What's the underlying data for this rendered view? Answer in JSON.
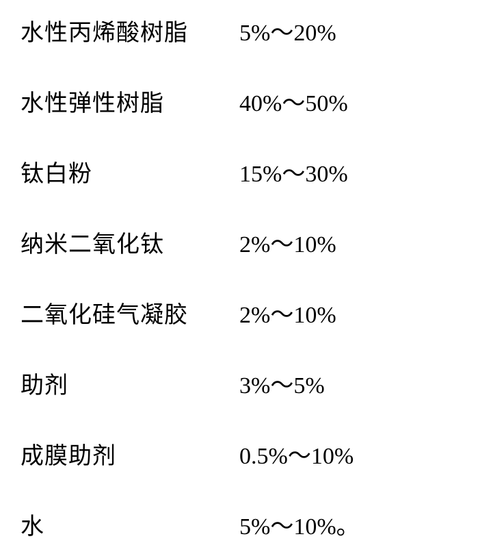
{
  "type": "table",
  "text_color": "#000000",
  "background_color": "#ffffff",
  "label_fontsize": 34,
  "value_fontsize": 34,
  "rows": [
    {
      "label": "水性丙烯酸树脂",
      "value": "5%～20%"
    },
    {
      "label": "水性弹性树脂",
      "value": "40%～50%"
    },
    {
      "label": "钛白粉",
      "value": "15%～30%"
    },
    {
      "label": "纳米二氧化钛",
      "value": "2%～10%"
    },
    {
      "label": "二氧化硅气凝胶",
      "value": "2%～10%"
    },
    {
      "label": "助剂",
      "value": "3%～5%"
    },
    {
      "label": "成膜助剂",
      "value": "0.5%～10%"
    },
    {
      "label": "水",
      "value": "5%～10%。"
    }
  ]
}
